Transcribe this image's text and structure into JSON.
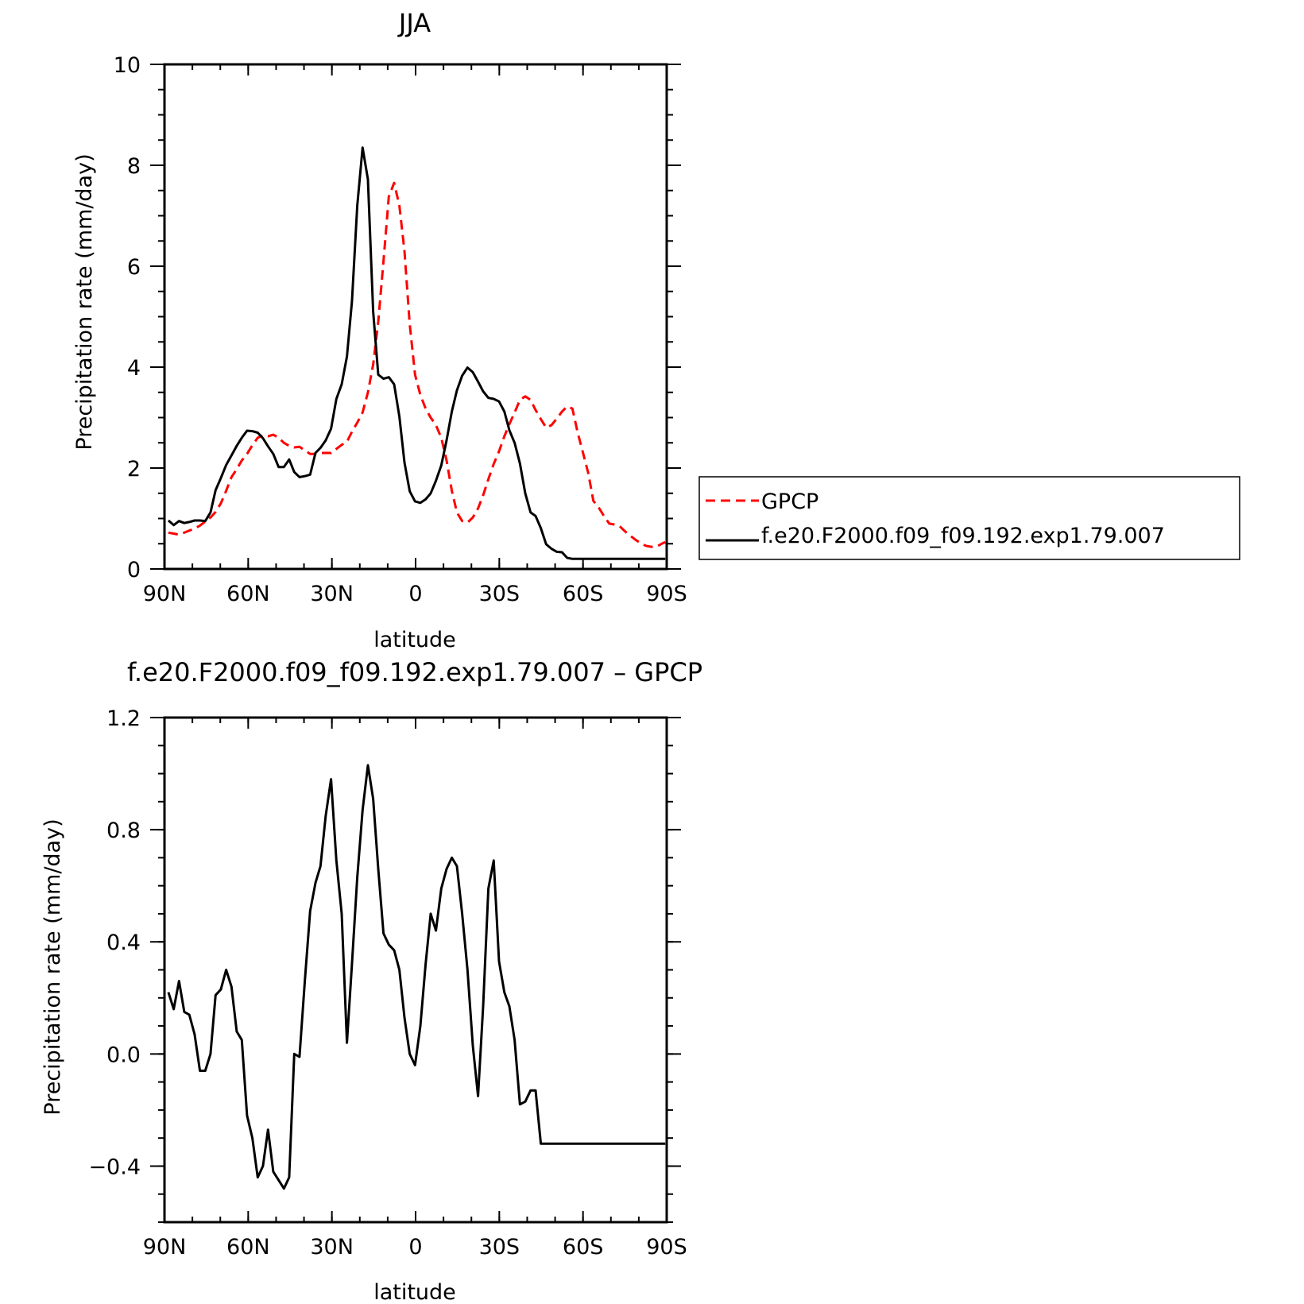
{
  "chart_data": [
    {
      "type": "line",
      "title": "JJA",
      "xlabel": "latitude",
      "ylabel": "Precipitation rate (mm/day)",
      "xlim": [
        -90,
        90
      ],
      "ylim": [
        0,
        10
      ],
      "xticks": [
        -90,
        -60,
        -30,
        0,
        30,
        60,
        90
      ],
      "xtick_labels": [
        "90N",
        "60N",
        "30N",
        "0",
        "30S",
        "60S",
        "90S"
      ],
      "yticks": [
        0,
        2,
        4,
        6,
        8,
        10
      ],
      "ytick_labels": [
        "0",
        "2",
        "4",
        "6",
        "8",
        "10"
      ],
      "legend_position": "right",
      "series": [
        {
          "name": "GPCP",
          "color": "#ff0000",
          "style": "dashed",
          "x": [
            -88.6,
            -86.7,
            -84.8,
            -82.9,
            -81.1,
            -79.2,
            -77.3,
            -75.4,
            -73.5,
            -71.7,
            -69.8,
            -67.9,
            -66.0,
            -64.1,
            -62.3,
            -60.4,
            -58.5,
            -56.6,
            -54.7,
            -52.9,
            -51.0,
            -49.1,
            -47.2,
            -45.3,
            -43.5,
            -41.6,
            -39.7,
            -37.8,
            -35.9,
            -34.1,
            -32.2,
            -30.3,
            -28.4,
            -26.5,
            -24.6,
            -22.8,
            -20.9,
            -19.0,
            -17.1,
            -15.2,
            -13.4,
            -11.5,
            -9.6,
            -7.7,
            -5.8,
            -4.0,
            -2.1,
            -0.2,
            1.7,
            3.6,
            5.4,
            7.3,
            9.2,
            11.1,
            13.0,
            14.8,
            16.7,
            18.6,
            20.5,
            22.4,
            24.2,
            26.1,
            28.0,
            29.9,
            31.8,
            33.6,
            35.5,
            37.4,
            39.3,
            41.2,
            43.0,
            44.9,
            46.8,
            48.7,
            50.6,
            52.5,
            54.3,
            56.2,
            58.1,
            60.0,
            61.9,
            63.7,
            65.6,
            67.5,
            69.4,
            71.3,
            73.1,
            75.0,
            76.9,
            78.8,
            80.7,
            82.5,
            84.4,
            86.3,
            88.2,
            89.5
          ],
          "y": [
            0.72,
            0.7,
            0.68,
            0.72,
            0.76,
            0.8,
            0.86,
            0.94,
            1.02,
            1.13,
            1.3,
            1.55,
            1.82,
            1.98,
            2.15,
            2.28,
            2.45,
            2.6,
            2.65,
            2.63,
            2.66,
            2.6,
            2.5,
            2.44,
            2.41,
            2.42,
            2.35,
            2.28,
            2.28,
            2.3,
            2.3,
            2.3,
            2.38,
            2.46,
            2.52,
            2.72,
            2.9,
            3.1,
            3.5,
            4.05,
            4.9,
            6.1,
            7.38,
            7.65,
            7.2,
            6.3,
            4.85,
            3.85,
            3.45,
            3.18,
            3.0,
            2.85,
            2.6,
            2.15,
            1.55,
            1.12,
            0.95,
            0.92,
            1.02,
            1.2,
            1.46,
            1.78,
            2.08,
            2.33,
            2.63,
            2.87,
            3.1,
            3.35,
            3.42,
            3.35,
            3.15,
            2.97,
            2.8,
            2.85,
            2.98,
            3.12,
            3.22,
            3.18,
            2.7,
            2.3,
            1.9,
            1.35,
            1.22,
            1.05,
            0.9,
            0.88,
            0.85,
            0.75,
            0.66,
            0.58,
            0.51,
            0.46,
            0.44,
            0.44,
            0.5,
            0.53
          ]
        },
        {
          "name": "f.e20.F2000.f09_f09.192.exp1.79.007",
          "color": "#000000",
          "style": "solid",
          "x": [
            -88.6,
            -86.7,
            -84.8,
            -82.9,
            -81.1,
            -79.2,
            -77.3,
            -75.4,
            -73.5,
            -71.7,
            -69.8,
            -67.9,
            -66.0,
            -64.1,
            -62.3,
            -60.4,
            -58.5,
            -56.6,
            -54.7,
            -52.9,
            -51.0,
            -49.1,
            -47.2,
            -45.3,
            -43.5,
            -41.6,
            -39.7,
            -37.8,
            -35.9,
            -34.1,
            -32.2,
            -30.3,
            -28.4,
            -26.5,
            -24.6,
            -22.8,
            -20.9,
            -19.0,
            -17.1,
            -15.2,
            -13.4,
            -11.5,
            -9.6,
            -7.7,
            -5.8,
            -4.0,
            -2.1,
            -0.2,
            1.7,
            3.6,
            5.4,
            7.3,
            9.2,
            11.1,
            13.0,
            14.8,
            16.7,
            18.6,
            20.5,
            22.4,
            24.2,
            26.1,
            28.0,
            29.9,
            31.8,
            33.6,
            35.5,
            37.4,
            39.3,
            41.2,
            43.0,
            44.9,
            46.8,
            48.7,
            50.6,
            52.5,
            54.3,
            56.2,
            58.1,
            60.0,
            61.9,
            63.7,
            65.6,
            67.5,
            69.4,
            71.3,
            73.1,
            75.0,
            76.9,
            78.8,
            80.7,
            82.5,
            84.4,
            86.3,
            88.2,
            89.5
          ],
          "y": [
            0.96,
            0.87,
            0.95,
            0.91,
            0.93,
            0.96,
            0.96,
            0.95,
            1.12,
            1.56,
            1.8,
            2.06,
            2.25,
            2.44,
            2.6,
            2.74,
            2.73,
            2.7,
            2.59,
            2.43,
            2.28,
            2.02,
            2.02,
            2.17,
            1.92,
            1.82,
            1.84,
            1.87,
            2.3,
            2.4,
            2.55,
            2.78,
            3.37,
            3.66,
            4.21,
            5.3,
            7.2,
            8.35,
            7.72,
            5.1,
            3.85,
            3.77,
            3.8,
            3.66,
            3.02,
            2.11,
            1.54,
            1.34,
            1.31,
            1.38,
            1.5,
            1.75,
            2.05,
            2.55,
            3.12,
            3.54,
            3.83,
            3.99,
            3.9,
            3.71,
            3.52,
            3.39,
            3.37,
            3.32,
            3.12,
            2.75,
            2.5,
            2.09,
            1.5,
            1.12,
            1.05,
            0.81,
            0.49,
            0.4,
            0.34,
            0.33,
            0.22,
            0.2,
            0.2,
            0.2,
            0.2,
            0.2,
            0.2,
            0.2,
            0.2,
            0.2,
            0.2,
            0.2,
            0.2,
            0.2,
            0.2,
            0.2,
            0.2,
            0.2,
            0.2,
            0.2
          ]
        }
      ]
    },
    {
      "type": "line",
      "title": "f.e20.F2000.f09_f09.192.exp1.79.007 – GPCP",
      "xlabel": "latitude",
      "ylabel": "Precipitation rate (mm/day)",
      "xlim": [
        -90,
        90
      ],
      "ylim": [
        -0.6,
        1.2
      ],
      "xticks": [
        -90,
        -60,
        -30,
        0,
        30,
        60,
        90
      ],
      "xtick_labels": [
        "90N",
        "60N",
        "30N",
        "0",
        "30S",
        "60S",
        "90S"
      ],
      "yticks": [
        -0.4,
        0.0,
        0.4,
        0.8,
        1.2
      ],
      "ytick_labels": [
        "−0.4",
        "0.0",
        "0.4",
        "0.8",
        "1.2"
      ],
      "series": [
        {
          "color": "#000000",
          "style": "solid",
          "x": [
            -88.6,
            -86.7,
            -84.8,
            -82.9,
            -81.1,
            -79.2,
            -77.3,
            -75.4,
            -73.5,
            -71.7,
            -69.8,
            -67.9,
            -66.0,
            -64.1,
            -62.3,
            -60.4,
            -58.5,
            -56.6,
            -54.7,
            -52.9,
            -51.0,
            -49.1,
            -47.2,
            -45.3,
            -43.5,
            -41.6,
            -39.7,
            -37.8,
            -35.9,
            -34.1,
            -32.2,
            -30.3,
            -28.4,
            -26.5,
            -24.6,
            -22.8,
            -20.9,
            -19.0,
            -17.1,
            -15.2,
            -13.4,
            -11.5,
            -9.6,
            -7.7,
            -5.8,
            -4.0,
            -2.1,
            -0.2,
            1.7,
            3.6,
            5.4,
            7.3,
            9.2,
            11.1,
            13.0,
            14.8,
            16.7,
            18.6,
            20.5,
            22.4,
            24.2,
            26.1,
            28.0,
            29.9,
            31.8,
            33.6,
            35.5,
            37.4,
            39.3,
            41.2,
            43.0,
            44.9,
            46.8,
            48.7,
            50.6,
            52.5,
            54.3,
            56.2,
            58.1,
            60.0,
            61.9,
            63.7,
            65.6,
            67.5,
            69.4,
            71.3,
            73.1,
            75.0,
            76.9,
            78.8,
            80.7,
            82.5,
            84.4,
            86.3,
            88.2,
            89.5
          ],
          "y": [
            0.22,
            0.16,
            0.26,
            0.15,
            0.14,
            0.07,
            -0.06,
            -0.06,
            0.0,
            0.21,
            0.23,
            0.3,
            0.24,
            0.08,
            0.05,
            -0.22,
            -0.3,
            -0.44,
            -0.4,
            -0.27,
            -0.42,
            -0.45,
            -0.48,
            -0.44,
            0.0,
            -0.01,
            0.26,
            0.51,
            0.61,
            0.67,
            0.85,
            0.98,
            0.69,
            0.5,
            0.04,
            0.32,
            0.63,
            0.87,
            1.03,
            0.91,
            0.66,
            0.43,
            0.39,
            0.37,
            0.3,
            0.13,
            0.0,
            -0.04,
            0.1,
            0.32,
            0.5,
            0.44,
            0.59,
            0.66,
            0.7,
            0.67,
            0.5,
            0.3,
            0.03,
            -0.15,
            0.17,
            0.59,
            0.69,
            0.33,
            0.22,
            0.17,
            0.05,
            -0.18,
            -0.17,
            -0.13,
            -0.13,
            -0.32,
            -0.32,
            -0.32,
            -0.32,
            -0.32,
            -0.32,
            -0.32,
            -0.32,
            -0.32,
            -0.32,
            -0.32,
            -0.32,
            -0.32,
            -0.32,
            -0.32,
            -0.32,
            -0.32,
            -0.32,
            -0.32,
            -0.32,
            -0.32,
            -0.32,
            -0.32,
            -0.32,
            -0.32
          ]
        }
      ]
    }
  ]
}
